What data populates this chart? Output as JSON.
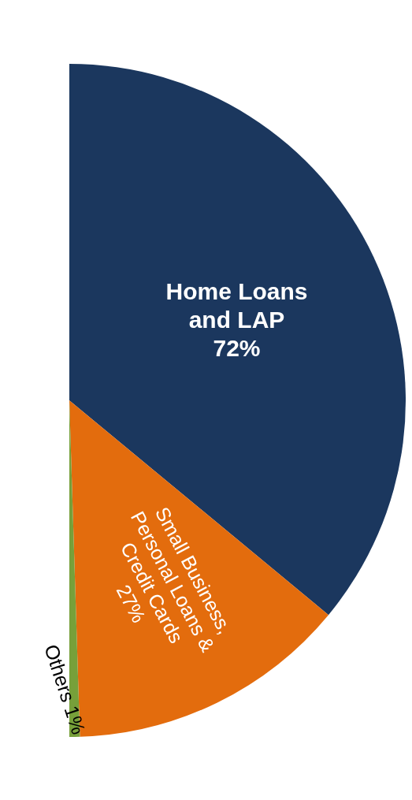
{
  "chart_data": {
    "type": "pie",
    "categories": [
      "Home Loans and LAP",
      "Small Business, Personal Loans & Credit Cards",
      "Others"
    ],
    "values": [
      72,
      27,
      1
    ],
    "value_labels": [
      "72%",
      "27%",
      "1%"
    ],
    "colors": [
      "#1b375e",
      "#e36c0d",
      "#77a03a"
    ],
    "legend": false
  }
}
